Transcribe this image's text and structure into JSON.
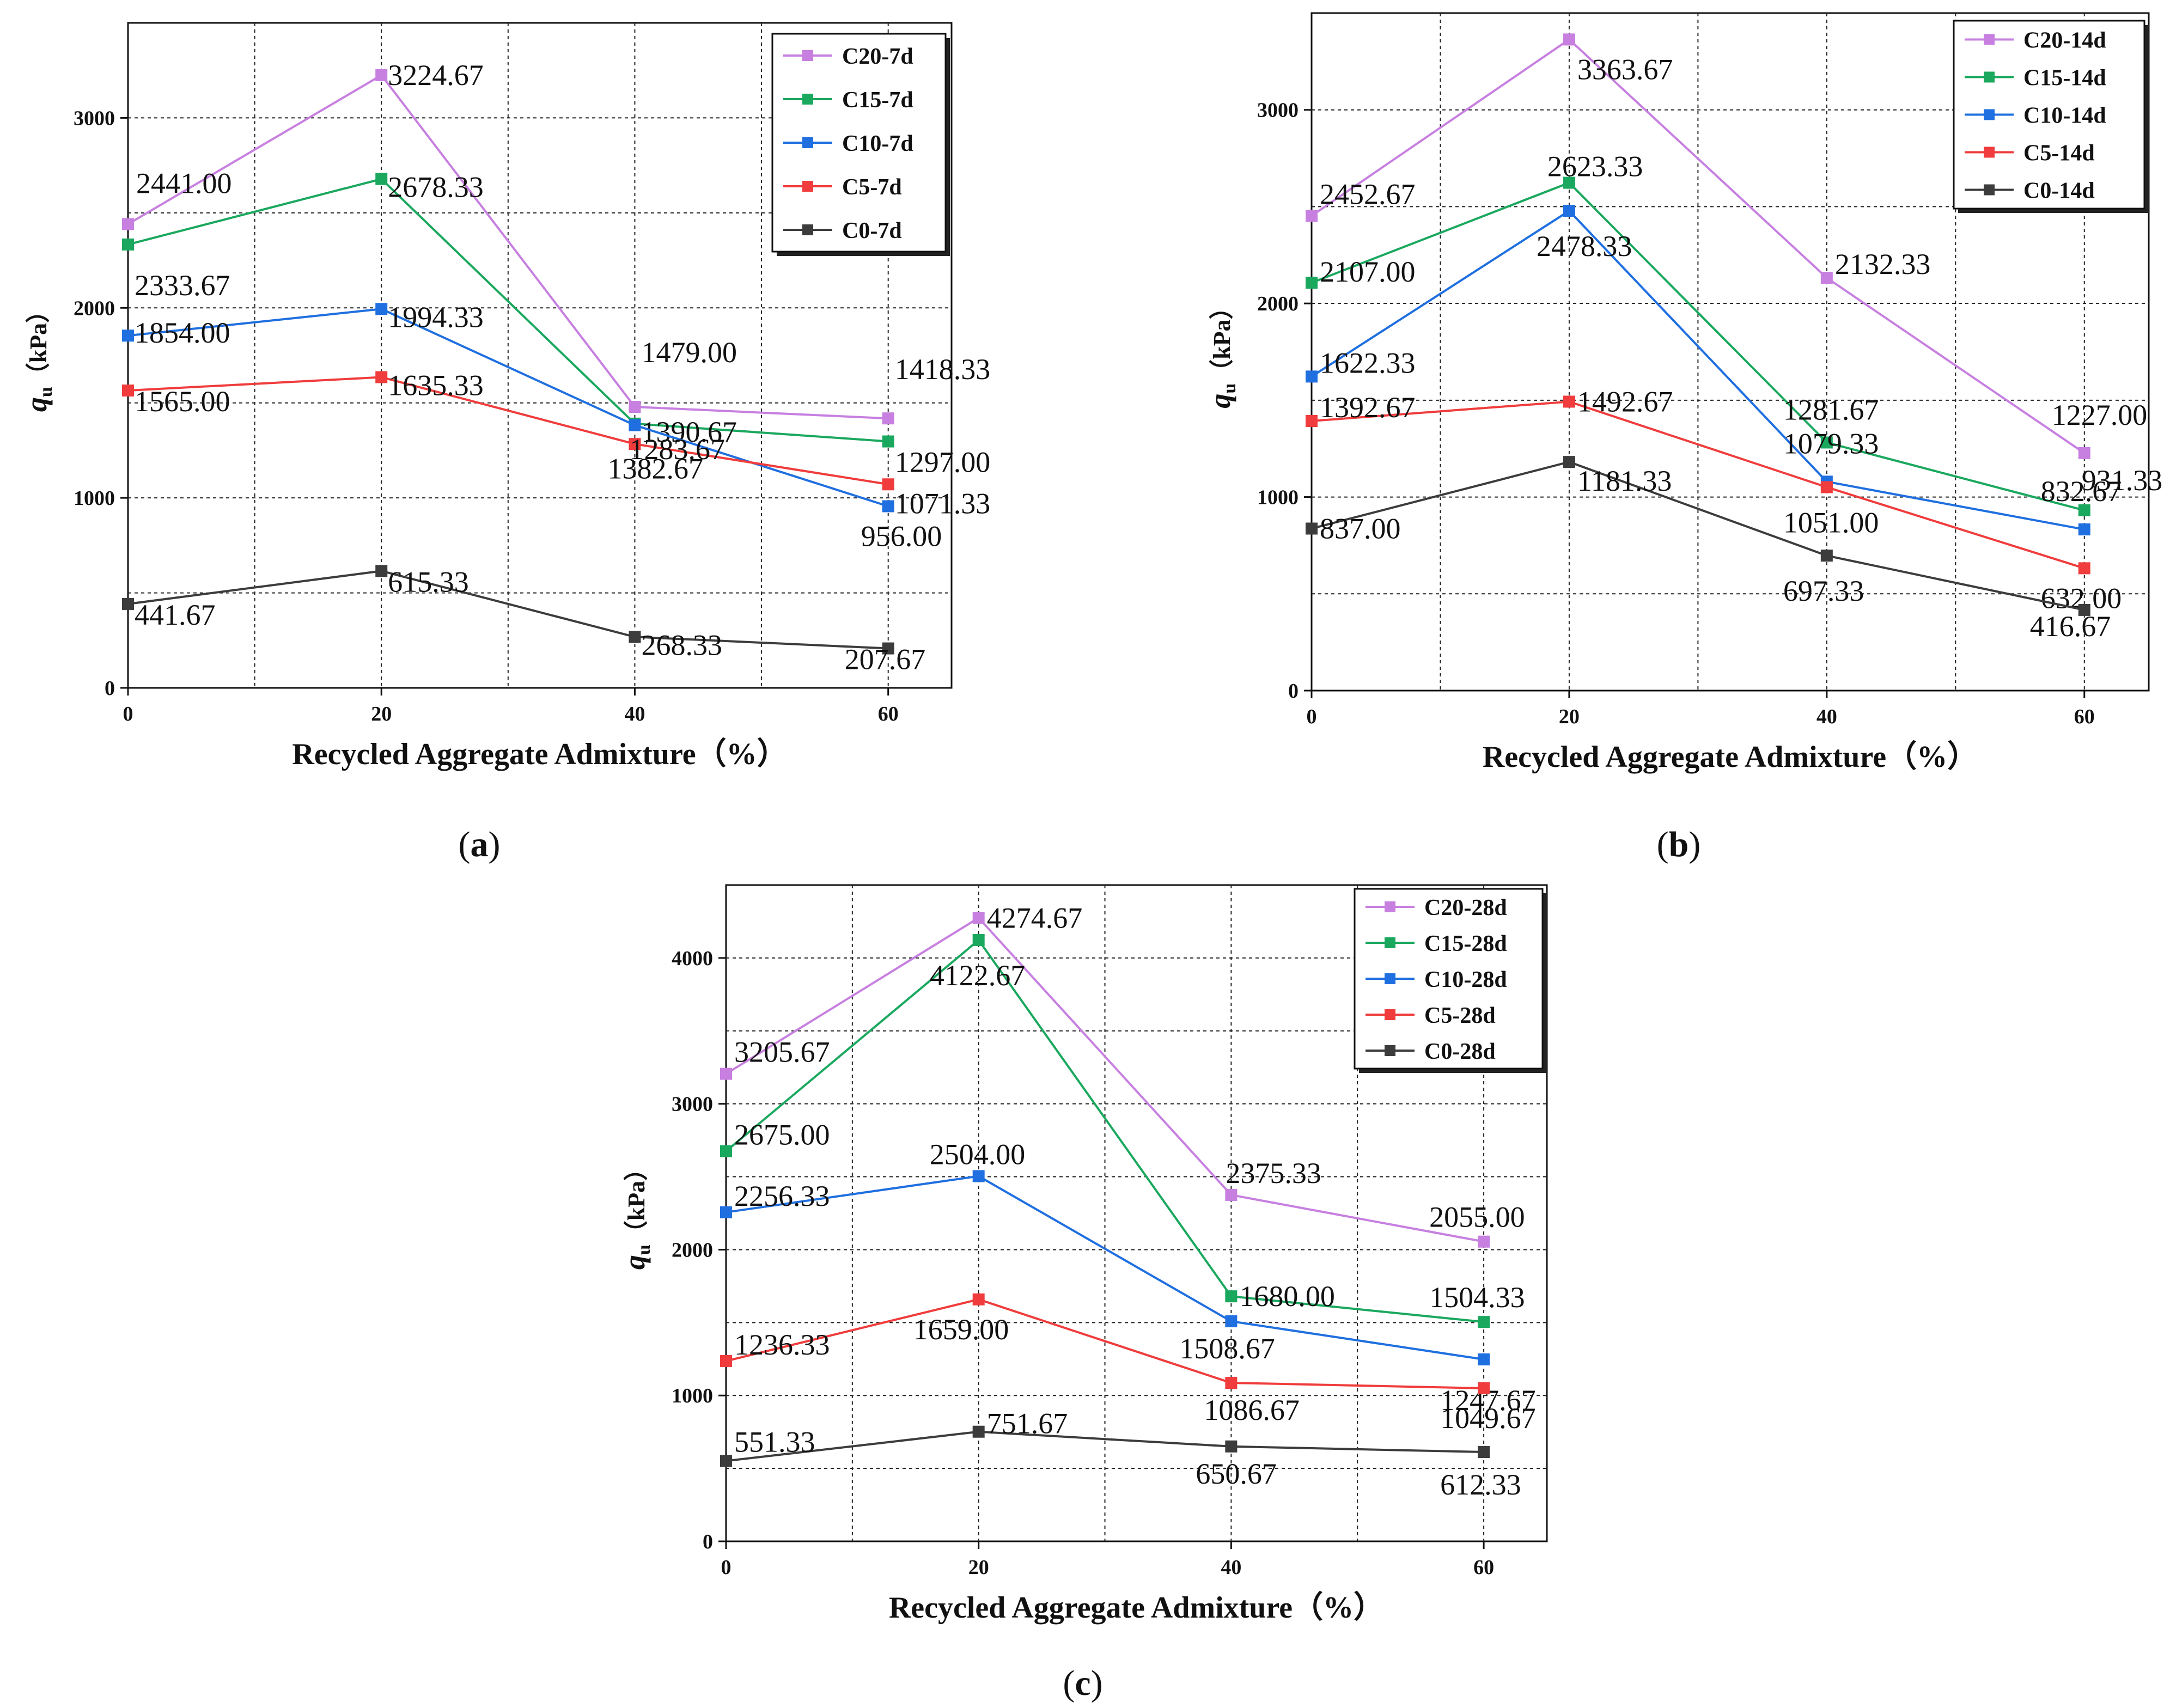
{
  "chart_data": [
    {
      "type": "line",
      "panel": "a",
      "caption": "(a)",
      "x": [
        0,
        20,
        40,
        60
      ],
      "xlabel": "Recycled Aggregate Admixture（%）",
      "ylabel_main": "q",
      "ylabel_sub": "u",
      "ylabel_unit": "（kPa）",
      "xlim": [
        0,
        65
      ],
      "ylim": [
        0,
        3500
      ],
      "xticks": [
        "0",
        "20",
        "40",
        "60"
      ],
      "yticks": [
        "0",
        "1000",
        "2000",
        "3000"
      ],
      "series": [
        {
          "name": "C20-7d",
          "values": [
            2441.0,
            3224.67,
            1479.0,
            1418.33
          ],
          "labels": [
            "2441.00",
            "3224.67",
            "1479.00",
            "1418.33"
          ]
        },
        {
          "name": "C15-7d",
          "values": [
            2333.67,
            2678.33,
            1390.67,
            1297.0
          ],
          "labels": [
            "2333.67",
            "2678.33",
            "1390.67",
            "1297.00"
          ]
        },
        {
          "name": "C10-7d",
          "values": [
            1854.0,
            1994.33,
            1382.67,
            956.0
          ],
          "labels": [
            "1854.00",
            "1994.33",
            "1382.67",
            "956.00"
          ]
        },
        {
          "name": "C5-7d",
          "values": [
            1565.0,
            1635.33,
            1283.67,
            1071.33
          ],
          "labels": [
            "1565.00",
            "1635.33",
            "1283.67",
            "1071.33"
          ]
        },
        {
          "name": "C0-7d",
          "values": [
            441.67,
            615.33,
            268.33,
            207.67
          ],
          "labels": [
            "441.67",
            "615.33",
            "268.33",
            "207.67"
          ]
        }
      ]
    },
    {
      "type": "line",
      "panel": "b",
      "caption": "(b)",
      "x": [
        0,
        20,
        40,
        60
      ],
      "xlabel": "Recycled Aggregate Admixture（%）",
      "ylabel_main": "q",
      "ylabel_sub": "u",
      "ylabel_unit": "（kPa）",
      "xlim": [
        0,
        65
      ],
      "ylim": [
        0,
        3500
      ],
      "xticks": [
        "0",
        "20",
        "40",
        "60"
      ],
      "yticks": [
        "0",
        "1000",
        "2000",
        "3000"
      ],
      "series": [
        {
          "name": "C20-14d",
          "values": [
            2452.67,
            3363.67,
            2132.33,
            1227.0
          ],
          "labels": [
            "2452.67",
            "3363.67",
            "2132.33",
            "1227.00"
          ]
        },
        {
          "name": "C15-14d",
          "values": [
            2107.0,
            2623.33,
            1281.67,
            931.33
          ],
          "labels": [
            "2107.00",
            "2623.33",
            "1281.67",
            "931.33"
          ]
        },
        {
          "name": "C10-14d",
          "values": [
            1622.33,
            2478.33,
            1079.33,
            832.67
          ],
          "labels": [
            "1622.33",
            "2478.33",
            "1079.33",
            "832.67"
          ]
        },
        {
          "name": "C5-14d",
          "values": [
            1392.67,
            1492.67,
            1051.0,
            632.0
          ],
          "labels": [
            "1392.67",
            "1492.67",
            "1051.00",
            "632.00"
          ]
        },
        {
          "name": "C0-14d",
          "values": [
            837.0,
            1181.33,
            697.33,
            416.67
          ],
          "labels": [
            "837.00",
            "1181.33",
            "697.33",
            "416.67"
          ]
        }
      ]
    },
    {
      "type": "line",
      "panel": "c",
      "caption": "(c)",
      "x": [
        0,
        20,
        40,
        60
      ],
      "xlabel": "Recycled Aggregate Admixture（%）",
      "ylabel_main": "q",
      "ylabel_sub": "u",
      "ylabel_unit": "（kPa）",
      "xlim": [
        0,
        65
      ],
      "ylim": [
        0,
        4500
      ],
      "xticks": [
        "0",
        "20",
        "40",
        "60"
      ],
      "yticks": [
        "0",
        "1000",
        "2000",
        "3000",
        "4000"
      ],
      "series": [
        {
          "name": "C20-28d",
          "values": [
            3205.67,
            4274.67,
            2375.33,
            2055.0
          ],
          "labels": [
            "3205.67",
            "4274.67",
            "2375.33",
            "2055.00"
          ]
        },
        {
          "name": "C15-28d",
          "values": [
            2675.0,
            4122.67,
            1680.0,
            1504.33
          ],
          "labels": [
            "2675.00",
            "4122.67",
            "1680.00",
            "1504.33"
          ]
        },
        {
          "name": "C10-28d",
          "values": [
            2256.33,
            2504.0,
            1508.67,
            1247.67
          ],
          "labels": [
            "2256.33",
            "2504.00",
            "1508.67",
            "1247.67"
          ]
        },
        {
          "name": "C5-28d",
          "values": [
            1236.33,
            1659.0,
            1086.67,
            1049.67
          ],
          "labels": [
            "1236.33",
            "1659.00",
            "1086.67",
            "1049.67"
          ]
        },
        {
          "name": "C0-28d",
          "values": [
            551.33,
            751.67,
            650.67,
            612.33
          ],
          "labels": [
            "551.33",
            "751.67",
            "650.67",
            "612.33"
          ]
        }
      ]
    }
  ],
  "colors": {
    "C20": "#c77fe0",
    "C15": "#1aa85e",
    "C10": "#1f6fe0",
    "C5": "#f03c3c",
    "C0": "#3c3c3c"
  }
}
